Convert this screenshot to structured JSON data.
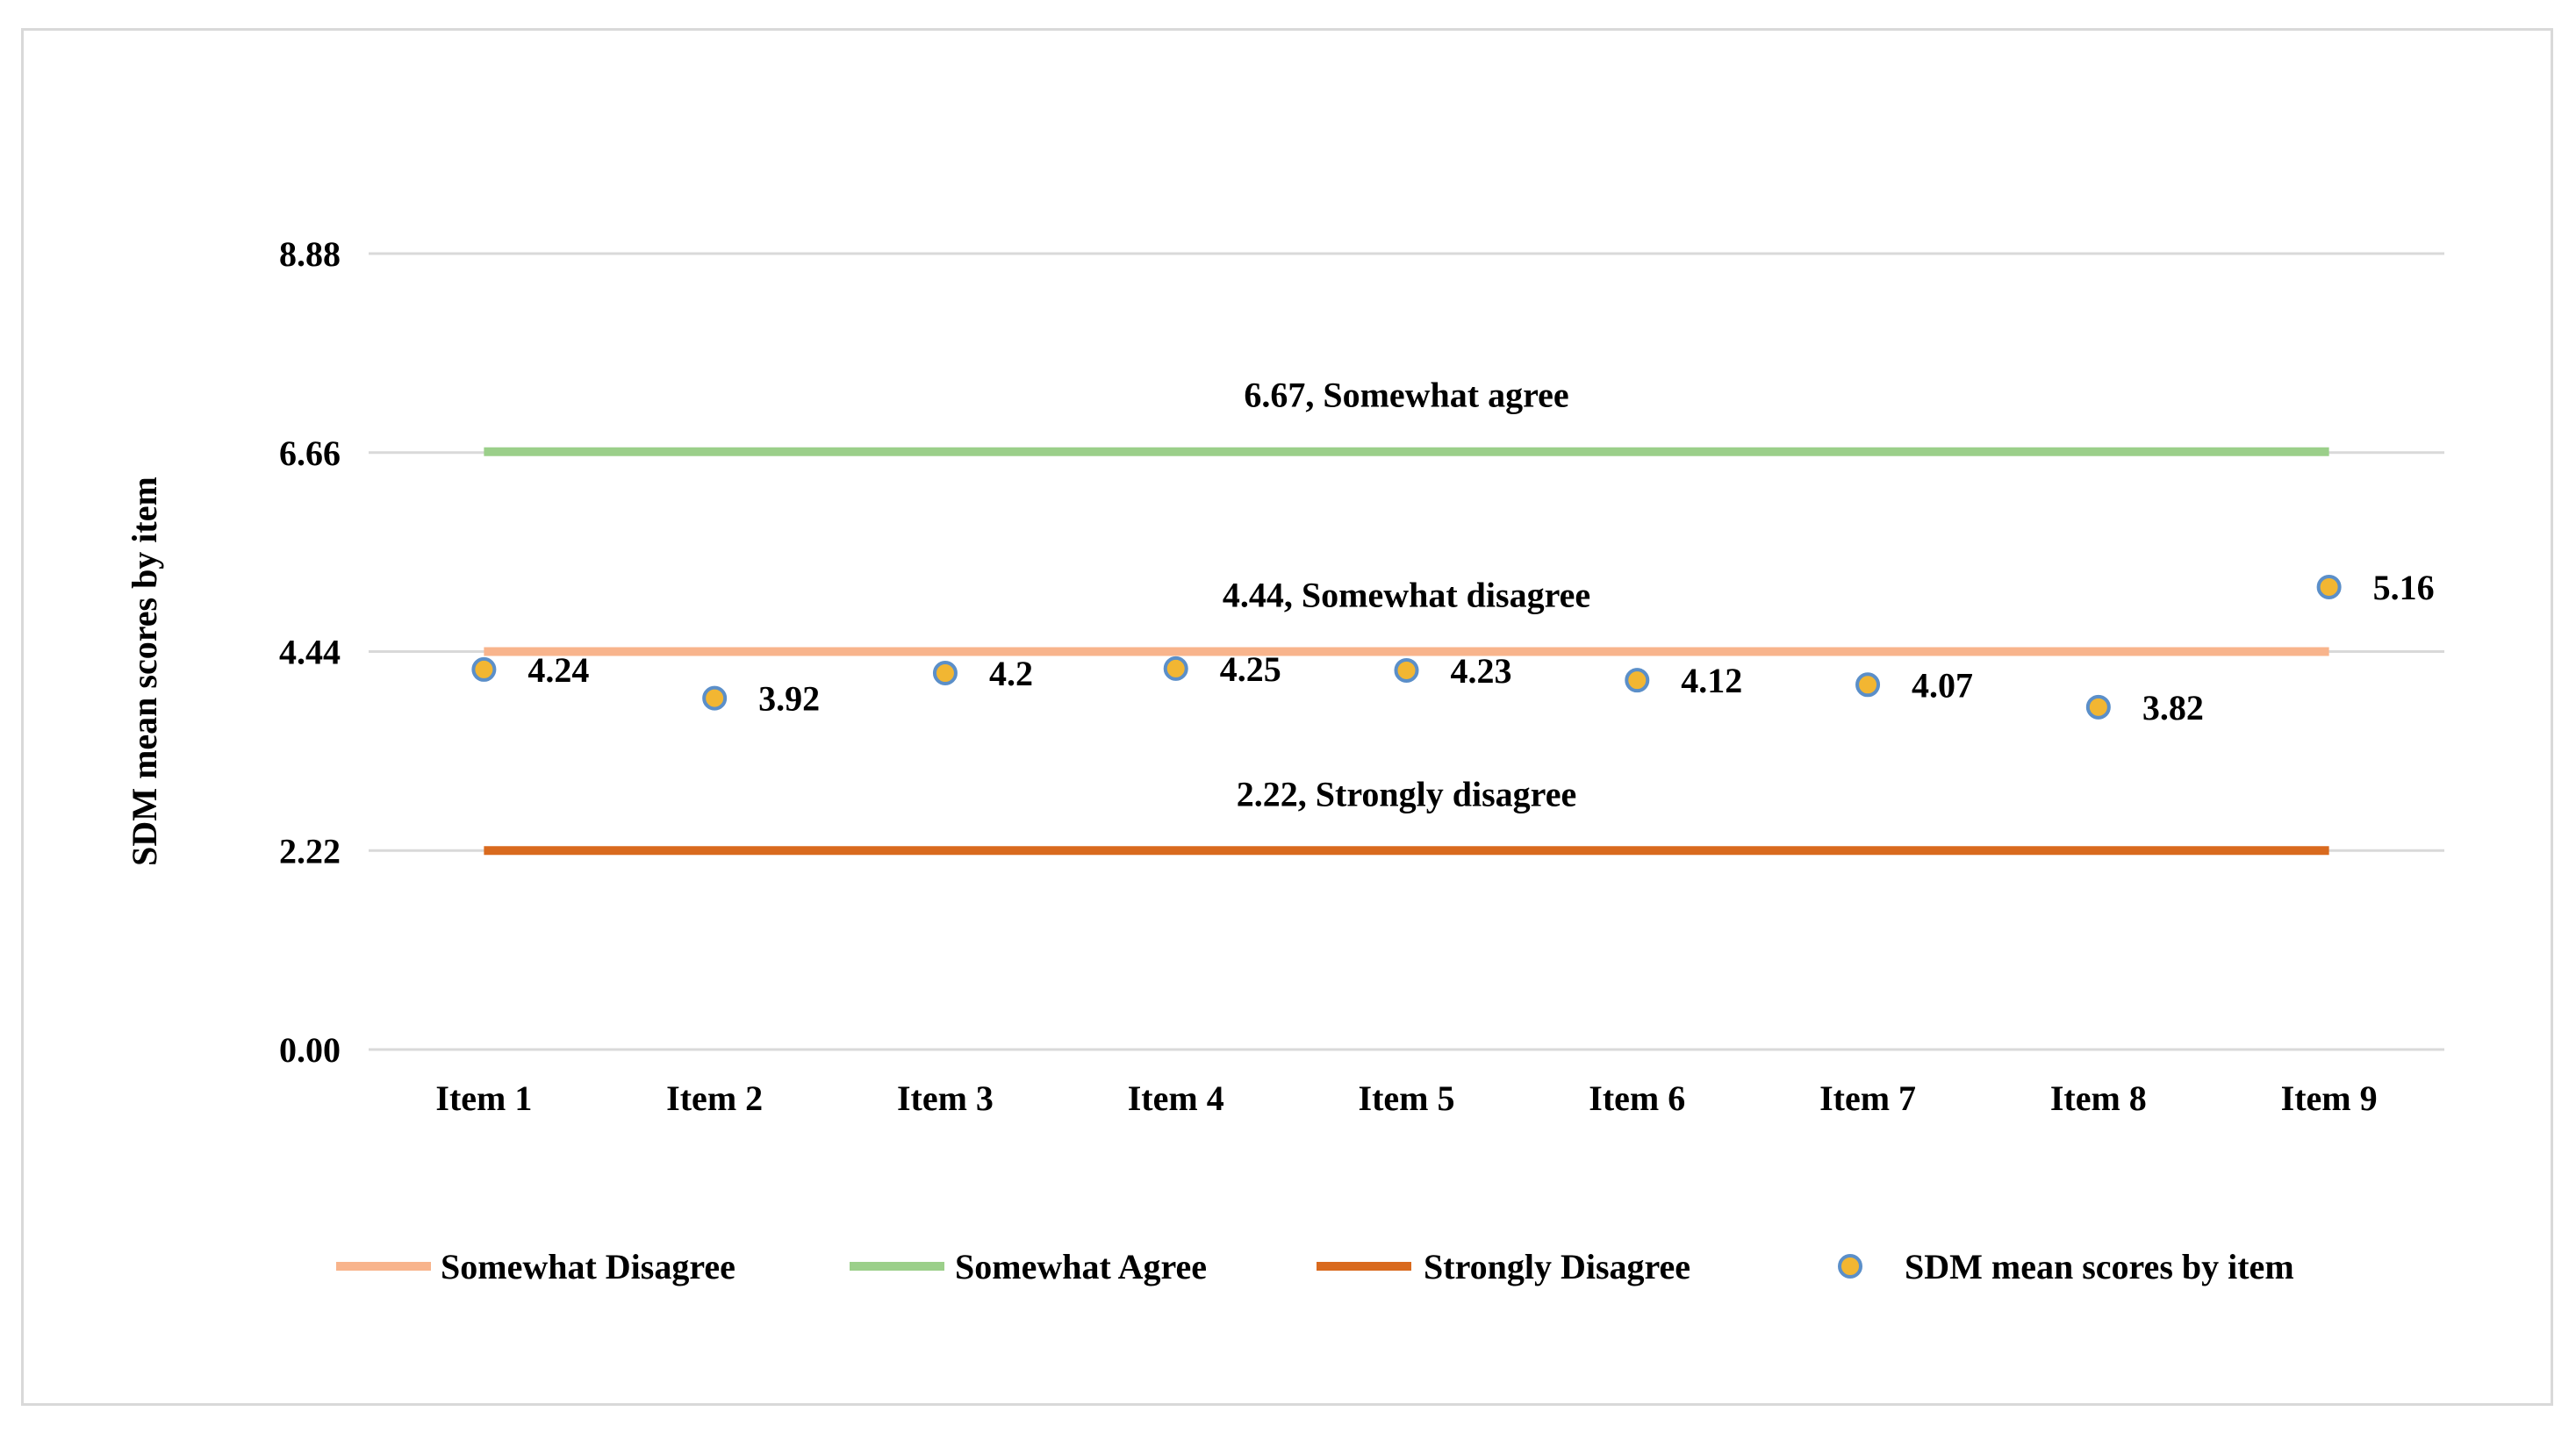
{
  "chart_data": {
    "type": "scatter",
    "title": "",
    "xlabel": "",
    "ylabel": "SDM  mean scores by item",
    "categories": [
      "Item 1",
      "Item 2",
      "Item 3",
      "Item 4",
      "Item 5",
      "Item 6",
      "Item 7",
      "Item 8",
      "Item 9"
    ],
    "y_ticks": [
      "0.00",
      "2.22",
      "4.44",
      "6.66",
      "8.88"
    ],
    "y_tick_values": [
      0,
      2.22,
      4.44,
      6.66,
      8.88
    ],
    "ylim": [
      0,
      8.88
    ],
    "grid": true,
    "legend_position": "bottom",
    "reference_lines": [
      {
        "name": "Somewhat Disagree",
        "value": 4.44,
        "label": "4.44, Somewhat disagree",
        "color": "#f8b48c"
      },
      {
        "name": "Somewhat Agree",
        "value": 6.67,
        "label": "6.67, Somewhat agree",
        "color": "#9bcf8a"
      },
      {
        "name": "Strongly Disagree",
        "value": 2.22,
        "label": "2.22, Strongly disagree",
        "color": "#d96a1e"
      }
    ],
    "series": [
      {
        "name": "SDM mean scores by item",
        "values": [
          4.24,
          3.92,
          4.2,
          4.25,
          4.23,
          4.12,
          4.07,
          3.82,
          5.16
        ],
        "labels": [
          "4.24",
          "3.92",
          "4.2",
          "4.25",
          "4.23",
          "4.12",
          "4.07",
          "3.82",
          "5.16"
        ],
        "marker_fill": "#f2b632",
        "marker_edge": "#5b8fc9"
      }
    ],
    "legend": [
      "Somewhat Disagree",
      "Somewhat Agree",
      "Strongly Disagree",
      "SDM mean scores by item"
    ]
  }
}
